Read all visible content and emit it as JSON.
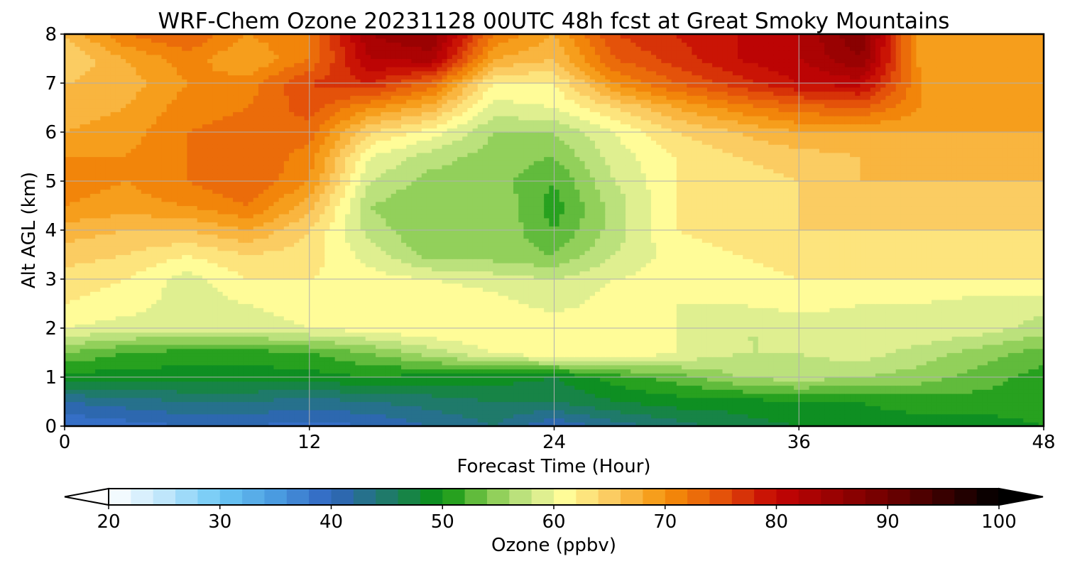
{
  "chart_data": {
    "type": "heatmap",
    "title": "WRF-Chem Ozone  20231128 00UTC 48h fcst at Great Smoky Mountains",
    "xlabel": "Forecast Time (Hour)",
    "ylabel": "Alt AGL (km)",
    "xlim": [
      0,
      48
    ],
    "ylim": [
      0,
      8
    ],
    "xticks": [
      0,
      12,
      24,
      36,
      48
    ],
    "yticks": [
      0,
      1,
      2,
      3,
      4,
      5,
      6,
      7,
      8
    ],
    "grid": true,
    "colorbar": {
      "label": "Ozone  (ppbv)",
      "min": 20,
      "max": 100,
      "ticks": [
        20,
        30,
        40,
        50,
        60,
        70,
        80,
        90,
        100
      ],
      "extend": "both",
      "placement": "bottom"
    },
    "x": [
      0,
      3,
      6,
      9,
      12,
      15,
      18,
      21,
      24,
      27,
      30,
      33,
      36,
      39,
      42,
      45,
      48
    ],
    "y": [
      0,
      0.5,
      1,
      1.5,
      2,
      2.5,
      3,
      3.5,
      4,
      4.5,
      5,
      5.5,
      6,
      6.5,
      7,
      7.5,
      8
    ],
    "z": [
      [
        38,
        39,
        40,
        40,
        39,
        40,
        42,
        44,
        40,
        43,
        45,
        47,
        48,
        49,
        49,
        49,
        50
      ],
      [
        42,
        43,
        44,
        44,
        43,
        44,
        45,
        46,
        46,
        48,
        49,
        49,
        50,
        50,
        51,
        51,
        51
      ],
      [
        49,
        49,
        49,
        49,
        49,
        50,
        49,
        49,
        48,
        51,
        53,
        56,
        57,
        56,
        55,
        53,
        51
      ],
      [
        54,
        52,
        51,
        51,
        52,
        54,
        57,
        60,
        62,
        62,
        60,
        58,
        58,
        59,
        57,
        55,
        53
      ],
      [
        60,
        59,
        59,
        59,
        60,
        61,
        62,
        62,
        62,
        61,
        60,
        58,
        58,
        59,
        60,
        59,
        57
      ],
      [
        62,
        61,
        59,
        60,
        61,
        61,
        62,
        61,
        59,
        61,
        60,
        60,
        61,
        60,
        60,
        59,
        59
      ],
      [
        63,
        62,
        59,
        62,
        62,
        61,
        60,
        59,
        58,
        60,
        61,
        61,
        62,
        62,
        62,
        62,
        62
      ],
      [
        65,
        64,
        62,
        64,
        63,
        59,
        55,
        55,
        54,
        58,
        61,
        62,
        63,
        63,
        63,
        63,
        63
      ],
      [
        67,
        66,
        66,
        68,
        64,
        57,
        54,
        56,
        52,
        57,
        62,
        63,
        64,
        64,
        64,
        64,
        64
      ],
      [
        70,
        69,
        70,
        72,
        67,
        56,
        54,
        56,
        51,
        57,
        62,
        63,
        64,
        65,
        65,
        65,
        65
      ],
      [
        71,
        70,
        72,
        74,
        70,
        58,
        55,
        55,
        52,
        58,
        62,
        63,
        64,
        66,
        66,
        66,
        66
      ],
      [
        70,
        70,
        72,
        74,
        71,
        60,
        57,
        55,
        54,
        59,
        62,
        64,
        65,
        66,
        67,
        67,
        67
      ],
      [
        68,
        69,
        72,
        73,
        73,
        64,
        61,
        56,
        56,
        60,
        64,
        66,
        68,
        68,
        68,
        68,
        68
      ],
      [
        67,
        68,
        71,
        72,
        75,
        70,
        67,
        59,
        60,
        64,
        68,
        71,
        73,
        74,
        70,
        69,
        69
      ],
      [
        66,
        67,
        70,
        71,
        76,
        78,
        73,
        62,
        62,
        70,
        74,
        77,
        80,
        81,
        70,
        69,
        69
      ],
      [
        64,
        68,
        71,
        68,
        72,
        82,
        83,
        68,
        66,
        74,
        77,
        80,
        82,
        86,
        69,
        68,
        69
      ],
      [
        66,
        72,
        74,
        70,
        72,
        84,
        86,
        72,
        68,
        76,
        78,
        80,
        82,
        88,
        68,
        68,
        69
      ]
    ]
  }
}
